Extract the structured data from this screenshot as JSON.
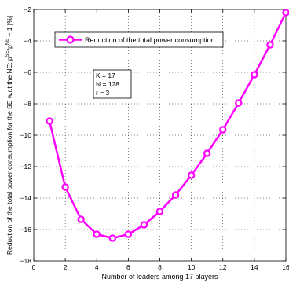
{
  "chart_data": {
    "type": "line",
    "xlabel": "Number of leaders among 17 players",
    "ylabel_main": "Reduction of the total power consumption for the SE w.r.t the NE: ",
    "ylabel_expr": {
      "p": "p",
      "sup_a": "SE",
      "slash": "/p",
      "sup_b": "NE",
      "tail": " − 1 [%]"
    },
    "xlim": [
      0,
      16
    ],
    "ylim": [
      -18,
      -2
    ],
    "xticks": [
      0,
      2,
      4,
      6,
      8,
      10,
      12,
      14,
      16
    ],
    "yticks": [
      -18,
      -16,
      -14,
      -12,
      -10,
      -8,
      -6,
      -4,
      -2
    ],
    "grid": true,
    "legend_position": "top-left",
    "series": [
      {
        "name": "Reduction of the total power consumption",
        "color": "#ff00ff",
        "x": [
          1,
          2,
          3,
          4,
          5,
          6,
          7,
          8,
          9,
          10,
          11,
          12,
          13,
          14,
          15,
          16
        ],
        "values": [
          -9.1,
          -13.3,
          -15.35,
          -16.3,
          -16.55,
          -16.3,
          -15.7,
          -14.85,
          -13.8,
          -12.55,
          -11.15,
          -9.65,
          -7.95,
          -6.15,
          -4.25,
          -2.2
        ]
      }
    ],
    "annotation": [
      "K  = 17",
      "N  = 128",
      "r   = 3"
    ]
  }
}
